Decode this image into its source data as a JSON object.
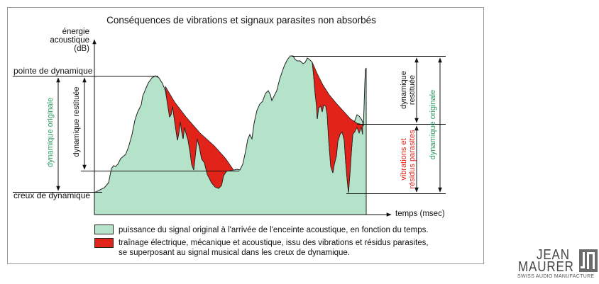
{
  "title": "Conséquences de vibrations et signaux parasites non absorbés",
  "y_axis_label": [
    "énergie",
    "acoustique",
    "(dB)"
  ],
  "x_axis_label": "temps (msec)",
  "left_labels": {
    "peak": "pointe de dynamique",
    "trough": "creux de dynamique",
    "original_dynamic": "dynamique originale",
    "restored_dynamic": "dynamique restituée"
  },
  "right_labels": {
    "restored_dynamic": [
      "dynamique",
      "restituée"
    ],
    "parasites": [
      "vibrations et",
      "résidus parasites"
    ],
    "original_dynamic": "dynamique originale"
  },
  "legend": {
    "green_text": "puissance du signal original à l'arrivée de l'enceinte acoustique, en fonction du temps.",
    "red_text": [
      "traînage électrique, mécanique et acoustique, issu des vibrations et résidus parasites,",
      "se superposant au signal musical dans les creux de dynamique."
    ]
  },
  "logo": {
    "line1": "JEAN",
    "line2": "MAURER",
    "tagline": "SWISS AUDIO MANUFACTURE"
  },
  "colors": {
    "signal_fill": "#b4e3c9",
    "parasite_fill": "#e2231a",
    "green_text": "#2f9a62",
    "red_text": "#e2231a",
    "outline": "#222222"
  }
}
